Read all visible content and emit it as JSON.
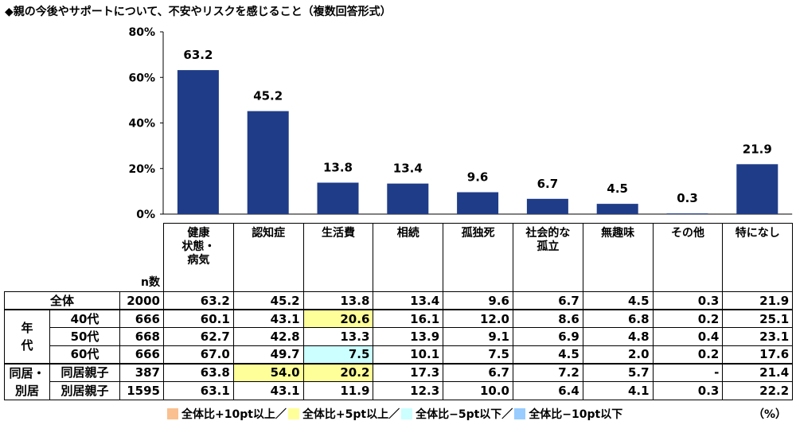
{
  "title": "◆親の今後やサポートについて、不安やリスクを感じること（複数回答形式）",
  "chart_data": {
    "type": "bar",
    "categories": [
      "健康状態・病気",
      "認知症",
      "生活費",
      "相続",
      "孤独死",
      "社会的な孤立",
      "無趣味",
      "その他",
      "特になし"
    ],
    "category_labels": [
      [
        "健康",
        "状態・",
        "病気"
      ],
      [
        "認知症"
      ],
      [
        "生活費"
      ],
      [
        "相続"
      ],
      [
        "孤独死"
      ],
      [
        "社会的な",
        "孤立"
      ],
      [
        "無趣味"
      ],
      [
        "その他"
      ],
      [
        "特になし"
      ]
    ],
    "values": [
      63.2,
      45.2,
      13.8,
      13.4,
      9.6,
      6.7,
      4.5,
      0.3,
      21.9
    ],
    "data_labels": [
      "63.2",
      "45.2",
      "13.8",
      "13.4",
      "9.6",
      "6.7",
      "4.5",
      "0.3",
      "21.9"
    ],
    "ylim": [
      0,
      80
    ],
    "yticks": [
      "0%",
      "20%",
      "40%",
      "60%",
      "80%"
    ],
    "bar_color": "#1f3c88",
    "grid": false
  },
  "table": {
    "n_header": "n数",
    "rows": [
      {
        "group": "",
        "label": "全体",
        "n": "2000",
        "values": [
          "63.2",
          "45.2",
          "13.8",
          "13.4",
          "9.6",
          "6.7",
          "4.5",
          "0.3",
          "21.9"
        ],
        "hl": [
          "",
          "",
          "",
          "",
          "",
          "",
          "",
          "",
          ""
        ]
      },
      {
        "group": "年代",
        "label": "40代",
        "n": "666",
        "values": [
          "60.1",
          "43.1",
          "20.6",
          "16.1",
          "12.0",
          "8.6",
          "6.8",
          "0.2",
          "25.1"
        ],
        "hl": [
          "",
          "",
          "y",
          "",
          "",
          "",
          "",
          "",
          ""
        ]
      },
      {
        "group": "",
        "label": "50代",
        "n": "668",
        "values": [
          "62.7",
          "42.8",
          "13.3",
          "13.9",
          "9.1",
          "6.9",
          "4.8",
          "0.4",
          "23.1"
        ],
        "hl": [
          "",
          "",
          "",
          "",
          "",
          "",
          "",
          "",
          ""
        ]
      },
      {
        "group": "",
        "label": "60代",
        "n": "666",
        "values": [
          "67.0",
          "49.7",
          "7.5",
          "10.1",
          "7.5",
          "4.5",
          "2.0",
          "0.2",
          "17.6"
        ],
        "hl": [
          "",
          "",
          "c",
          "",
          "",
          "",
          "",
          "",
          ""
        ]
      },
      {
        "group": "同居・別居",
        "label": "同居親子",
        "n": "387",
        "values": [
          "63.8",
          "54.0",
          "20.2",
          "17.3",
          "6.7",
          "7.2",
          "5.7",
          "-",
          "21.4"
        ],
        "hl": [
          "",
          "y",
          "y",
          "",
          "",
          "",
          "",
          "",
          ""
        ]
      },
      {
        "group": "",
        "label": "別居親子",
        "n": "1595",
        "values": [
          "63.1",
          "43.1",
          "11.9",
          "12.3",
          "10.0",
          "6.4",
          "4.1",
          "0.3",
          "22.2"
        ],
        "hl": [
          "",
          "",
          "",
          "",
          "",
          "",
          "",
          "",
          ""
        ]
      }
    ]
  },
  "legend": [
    {
      "label": "全体比+10pt以上／",
      "color": "#fac090"
    },
    {
      "label": "全体比+5pt以上／",
      "color": "#ffff99"
    },
    {
      "label": "全体比−5pt以下／",
      "color": "#ccffff"
    },
    {
      "label": "全体比−10pt以下",
      "color": "#99ccff"
    }
  ],
  "unit": "（%）"
}
